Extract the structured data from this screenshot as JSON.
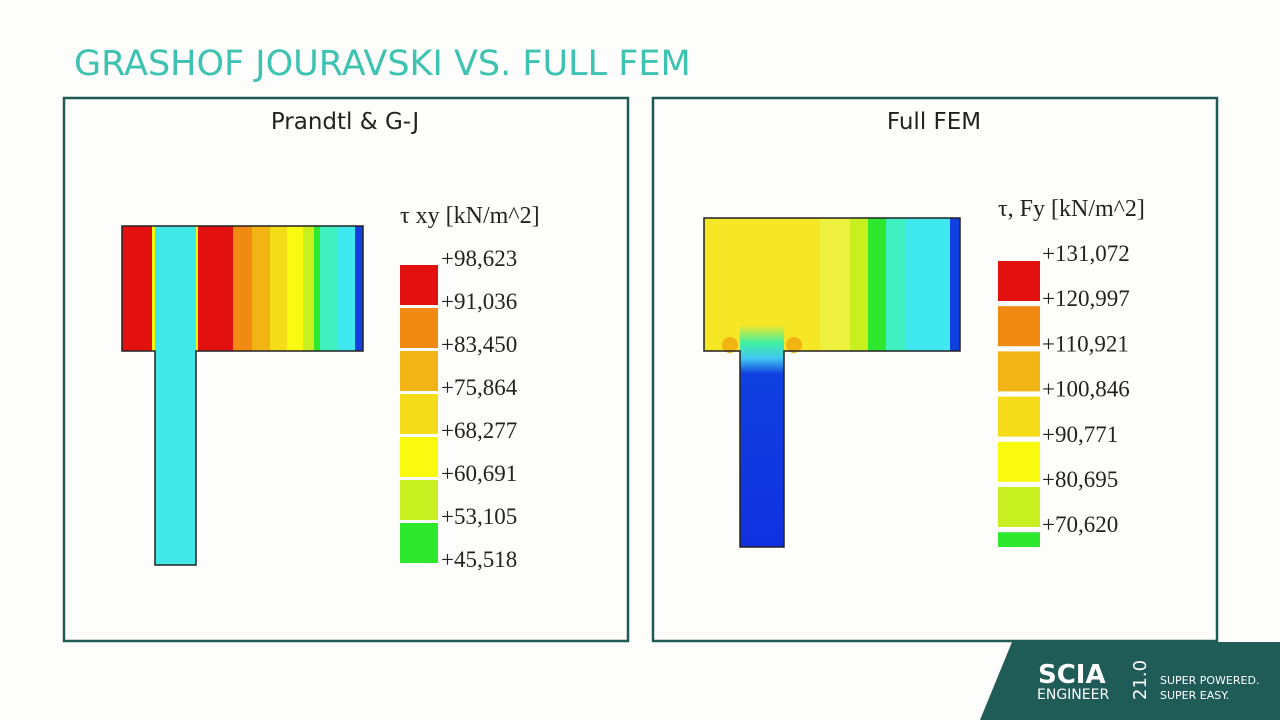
{
  "header": {
    "title": "GRASHOF JOURAVSKI VS. FULL FEM"
  },
  "panels": [
    {
      "heading": "Prandtl & G-J",
      "legend_title": "τ xy [kN/m^2]",
      "legend_labels": [
        "+98,623",
        "+91,036",
        "+83,450",
        "+75,864",
        "+68,277",
        "+60,691",
        "+53,105",
        "+45,518"
      ],
      "legend_colors": [
        "#e31010",
        "#f08a10",
        "#f2b414",
        "#f5dc18",
        "#fafa10",
        "#c8f020",
        "#2ee82e"
      ]
    },
    {
      "heading": "Full FEM",
      "legend_title": "τ, Fy [kN/m^2]",
      "legend_labels": [
        "+131,072",
        "+120,997",
        "+110,921",
        "+100,846",
        "+90,771",
        "+80,695",
        "+70,620"
      ],
      "legend_colors": [
        "#e31010",
        "#f08a10",
        "#f2b414",
        "#f5dc18",
        "#fafa10",
        "#c8f020",
        "#2ee82e"
      ]
    }
  ],
  "logo": {
    "brand": "SCIA",
    "product": "ENGINEER",
    "version": "21.0",
    "slogan": [
      "SUPER POWERED.",
      "SUPER EASY."
    ]
  }
}
